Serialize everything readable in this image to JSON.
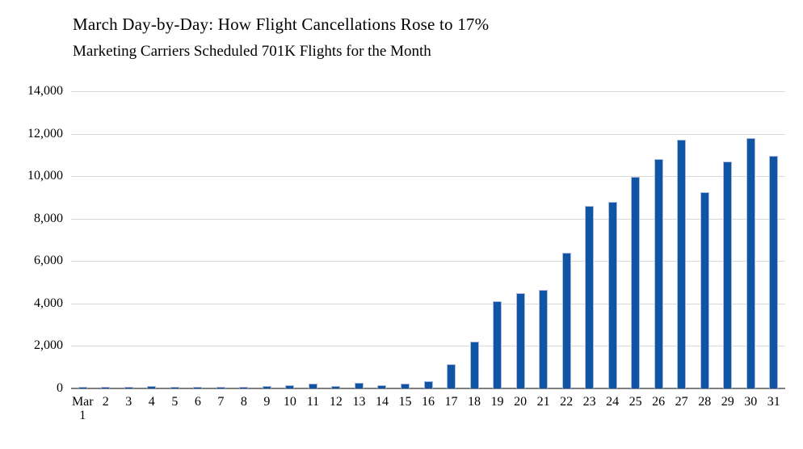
{
  "chart_data": {
    "type": "bar",
    "title": "March Day-by-Day: How Flight Cancellations Rose to 17%",
    "subtitle": "Marketing Carriers Scheduled 701K Flights for the Month",
    "categories": [
      "Mar 1",
      "2",
      "3",
      "4",
      "5",
      "6",
      "7",
      "8",
      "9",
      "10",
      "11",
      "12",
      "13",
      "14",
      "15",
      "16",
      "17",
      "18",
      "19",
      "20",
      "21",
      "22",
      "23",
      "24",
      "25",
      "26",
      "27",
      "28",
      "29",
      "30",
      "31"
    ],
    "values": [
      75,
      70,
      75,
      120,
      70,
      70,
      75,
      70,
      100,
      170,
      240,
      130,
      280,
      170,
      220,
      360,
      1150,
      2200,
      4100,
      4500,
      4650,
      6400,
      8600,
      8800,
      9950,
      10800,
      11700,
      9250,
      10700,
      11800,
      10950
    ],
    "xlabel": "",
    "ylabel": "",
    "ylim": [
      0,
      14000
    ],
    "ytick_interval": 2000,
    "yticks": [
      "0",
      "2,000",
      "4,000",
      "6,000",
      "8,000",
      "10,000",
      "12,000",
      "14,000"
    ],
    "grid": true,
    "legend": "none",
    "bar_color": "#0f55a4",
    "bar_border_color": "#aebbdf",
    "gridline_color": "#d9d9d9",
    "axis_line_color": "#7f7f7f",
    "text_color": "#000000",
    "background_color": "#ffffff"
  }
}
